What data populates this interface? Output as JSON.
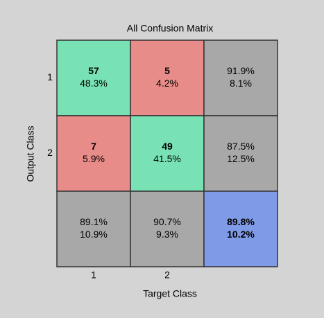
{
  "chart_data": {
    "type": "confusion",
    "title": "All Confusion Matrix",
    "xlabel": "Target Class",
    "ylabel": "Output Class",
    "x_categories": [
      "1",
      "2"
    ],
    "y_categories": [
      "1",
      "2"
    ],
    "counts": [
      [
        57,
        5
      ],
      [
        7,
        49
      ]
    ],
    "percents": [
      [
        48.3,
        4.2
      ],
      [
        5.9,
        41.5
      ]
    ],
    "percent_labels": [
      [
        "48.3%",
        "4.2%"
      ],
      [
        "5.9%",
        "41.5%"
      ]
    ],
    "row_correct": [
      91.9,
      87.5
    ],
    "row_correct_labels": [
      "91.9%",
      "87.5%"
    ],
    "row_error": [
      8.1,
      12.5
    ],
    "row_error_labels": [
      "8.1%",
      "12.5%"
    ],
    "col_correct": [
      89.1,
      90.7
    ],
    "col_correct_labels": [
      "89.1%",
      "90.7%"
    ],
    "col_error": [
      10.9,
      9.3
    ],
    "col_error_labels": [
      "10.9%",
      "9.3%"
    ],
    "overall_correct": 89.8,
    "overall_correct_label": "89.8%",
    "overall_error": 10.2,
    "overall_error_label": "10.2%",
    "colors": {
      "correct": "#78e2b4",
      "wrong": "#e88c89",
      "summary": "#a8a8a8",
      "overall": "#7f9ae6",
      "correct_text": "#2e7d32",
      "error_text": "#8b1a1a"
    }
  }
}
